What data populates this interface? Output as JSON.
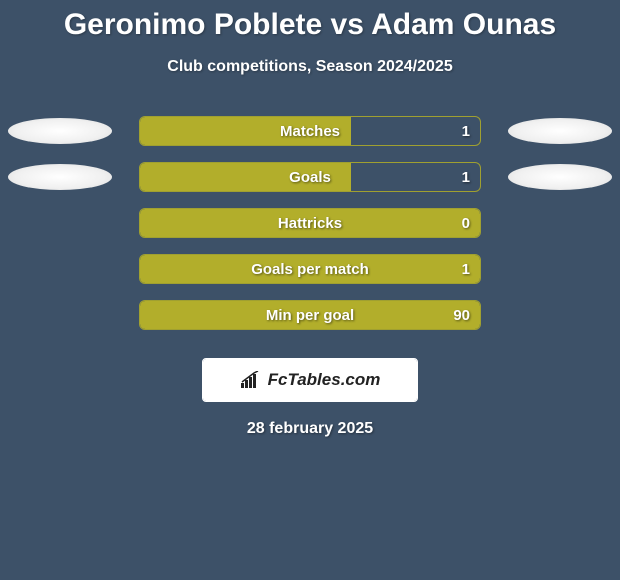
{
  "title": "Geronimo Poblete vs Adam Ounas",
  "subtitle": "Club competitions, Season 2024/2025",
  "date": "28 february 2025",
  "logo_text": "FcTables.com",
  "background_color": "#3d5168",
  "bar_border_color": "#a0a030",
  "bar_fill_color": "#b2ae2b",
  "text_color": "#ffffff",
  "stats": [
    {
      "label": "Matches",
      "value": "1",
      "fill_pct": 62,
      "show_left_ellipse": true,
      "show_right_ellipse": true
    },
    {
      "label": "Goals",
      "value": "1",
      "fill_pct": 62,
      "show_left_ellipse": true,
      "show_right_ellipse": true
    },
    {
      "label": "Hattricks",
      "value": "0",
      "fill_pct": 100,
      "show_left_ellipse": false,
      "show_right_ellipse": false
    },
    {
      "label": "Goals per match",
      "value": "1",
      "fill_pct": 100,
      "show_left_ellipse": false,
      "show_right_ellipse": false
    },
    {
      "label": "Min per goal",
      "value": "90",
      "fill_pct": 100,
      "show_left_ellipse": false,
      "show_right_ellipse": false
    }
  ]
}
